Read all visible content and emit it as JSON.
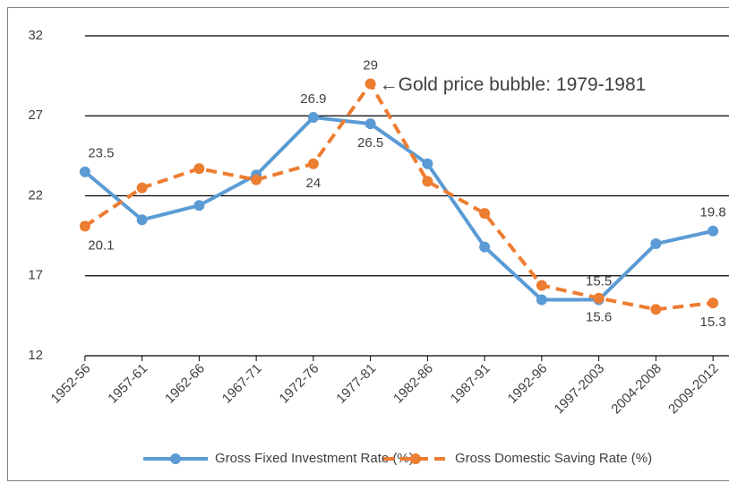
{
  "chart_data": {
    "type": "line",
    "categories": [
      "1952-56",
      "1957-61",
      "1962-66",
      "1967-71",
      "1972-76",
      "1977-81",
      "1982-86",
      "1987-91",
      "1992-96",
      "1997-2003",
      "2004-2008",
      "2009-2012"
    ],
    "series": [
      {
        "name": "Gross Fixed Investment Rate (%)",
        "color": "#5b9bd5",
        "dash": "solid",
        "values": [
          23.5,
          20.5,
          21.4,
          23.3,
          26.9,
          26.5,
          24.0,
          18.8,
          15.5,
          15.5,
          19.0,
          19.8
        ],
        "value_labels": [
          "23.5",
          null,
          null,
          null,
          "26.9",
          "26.5",
          null,
          null,
          null,
          "15.5",
          null,
          "19.8"
        ]
      },
      {
        "name": "Gross Domestic Saving Rate (%)",
        "color": "#ed7d31",
        "dash": "dashed",
        "values": [
          20.1,
          22.5,
          23.7,
          23.0,
          24,
          29,
          22.9,
          20.9,
          16.4,
          15.6,
          14.9,
          15.3
        ],
        "value_labels": [
          "20.1",
          null,
          null,
          null,
          "24",
          "29",
          null,
          null,
          null,
          "15.6",
          null,
          "15.3"
        ]
      }
    ],
    "ylim": [
      12,
      32
    ],
    "yticks": [
      12,
      17,
      22,
      27,
      32
    ],
    "grid": true,
    "legend": "bottom",
    "annotations": [
      {
        "text": "←Gold price bubble: 1979-1981",
        "series": 1,
        "index": 5
      }
    ]
  }
}
